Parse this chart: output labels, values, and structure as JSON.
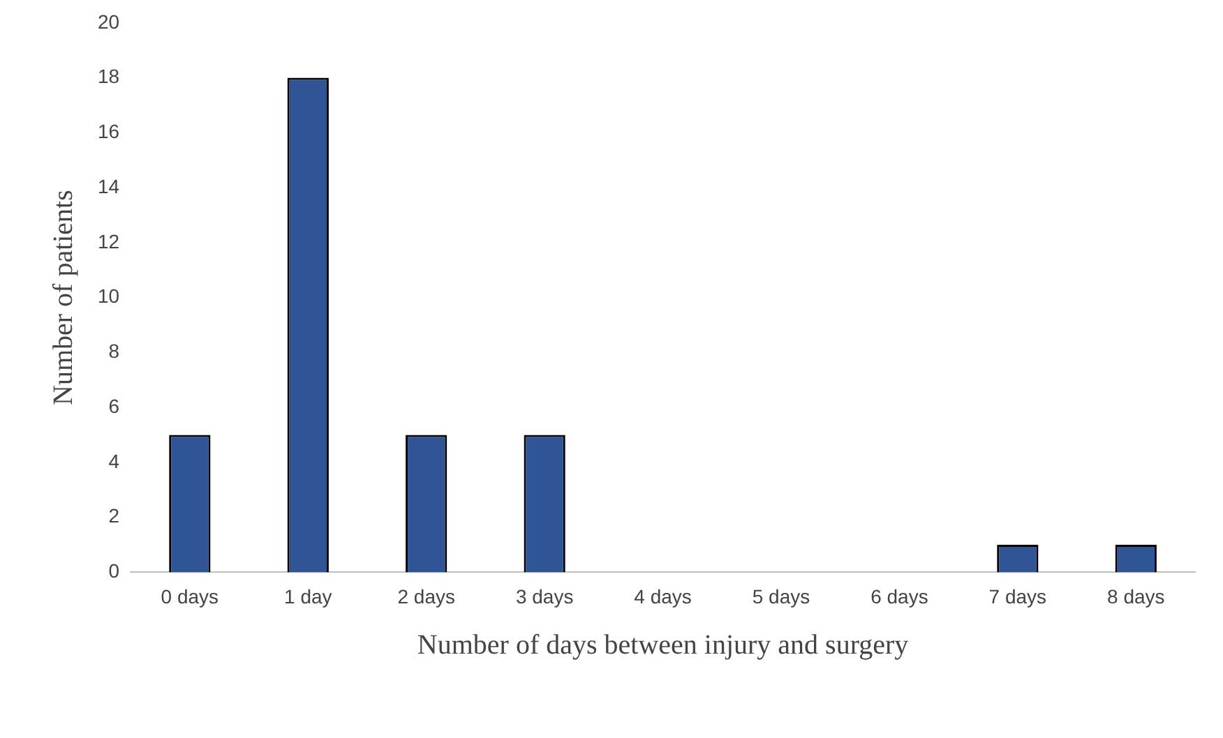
{
  "chart_data": {
    "type": "bar",
    "xlabel": "Number of days between injury and surgery",
    "ylabel": "Number of patients",
    "categories": [
      "0 days",
      "1 day",
      "2 days",
      "3 days",
      "4 days",
      "5 days",
      "6 days",
      "7 days",
      "8 days"
    ],
    "values": [
      5,
      18,
      5,
      5,
      0,
      0,
      0,
      1,
      1
    ],
    "color": "#2f5597",
    "ylim": [
      0,
      20
    ],
    "yticks": [
      0,
      2,
      4,
      6,
      8,
      10,
      12,
      14,
      16,
      18,
      20
    ],
    "grid": false,
    "legend": false
  }
}
